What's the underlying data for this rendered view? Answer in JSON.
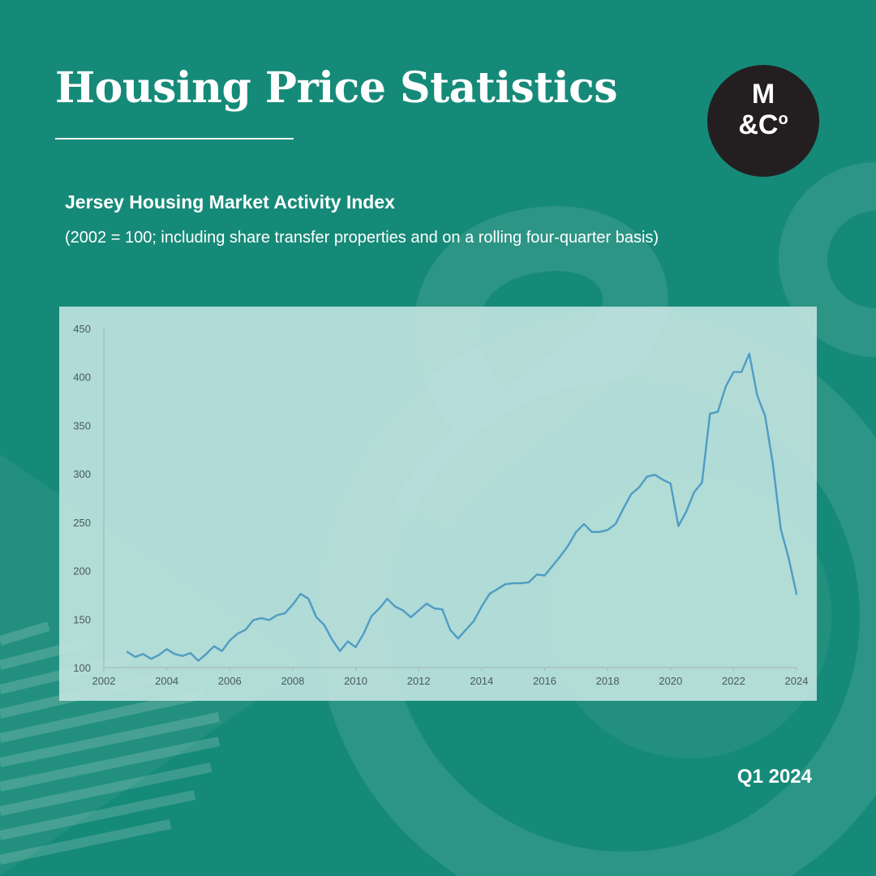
{
  "header": {
    "title": "Housing Price Statistics"
  },
  "logo": {
    "line1": "M",
    "line2": "&C",
    "line2_sup": "o"
  },
  "colors": {
    "background": "#168a78",
    "line": "#4f9cc4",
    "panel": "#c6e6e2",
    "logo_bg": "#231f20"
  },
  "chart_data": {
    "type": "line",
    "title": "Jersey Housing Market Activity Index",
    "subtitle": "(2002 = 100; including share transfer properties and on a rolling four-quarter basis)",
    "xlabel": "",
    "ylabel": "",
    "xlim": [
      2002,
      2024
    ],
    "ylim": [
      100,
      450
    ],
    "x_ticks": [
      "2002",
      "2004",
      "2006",
      "2008",
      "2010",
      "2012",
      "2014",
      "2016",
      "2018",
      "2020",
      "2022",
      "2024"
    ],
    "y_ticks": [
      "100",
      "150",
      "200",
      "250",
      "300",
      "350",
      "400",
      "450"
    ],
    "grid": false,
    "series": [
      {
        "name": "Housing Market Activity Index",
        "x": [
          2002.75,
          2003.0,
          2003.25,
          2003.5,
          2003.75,
          2004.0,
          2004.25,
          2004.5,
          2004.75,
          2005.0,
          2005.25,
          2005.5,
          2005.75,
          2006.0,
          2006.25,
          2006.5,
          2006.75,
          2007.0,
          2007.25,
          2007.5,
          2007.75,
          2008.0,
          2008.25,
          2008.5,
          2008.75,
          2009.0,
          2009.25,
          2009.5,
          2009.75,
          2010.0,
          2010.25,
          2010.5,
          2010.75,
          2011.0,
          2011.25,
          2011.5,
          2011.75,
          2012.0,
          2012.25,
          2012.5,
          2012.75,
          2013.0,
          2013.25,
          2013.5,
          2013.75,
          2014.0,
          2014.25,
          2014.5,
          2014.75,
          2015.0,
          2015.25,
          2015.5,
          2015.75,
          2016.0,
          2016.25,
          2016.5,
          2016.75,
          2017.0,
          2017.25,
          2017.5,
          2017.75,
          2018.0,
          2018.25,
          2018.5,
          2018.75,
          2019.0,
          2019.25,
          2019.5,
          2019.75,
          2020.0,
          2020.25,
          2020.5,
          2020.75,
          2021.0,
          2021.25,
          2021.5,
          2021.75,
          2022.0,
          2022.25,
          2022.5,
          2022.75,
          2023.0,
          2023.25,
          2023.5,
          2023.75,
          2024.0
        ],
        "values": [
          116,
          111,
          114,
          109,
          113,
          119,
          114,
          112,
          115,
          107,
          114,
          122,
          117,
          128,
          135,
          139,
          149,
          151,
          149,
          154,
          156,
          165,
          176,
          171,
          152,
          144,
          129,
          117,
          127,
          121,
          135,
          153,
          161,
          171,
          163,
          159,
          152,
          159,
          166,
          161,
          160,
          139,
          130,
          139,
          148,
          163,
          176,
          181,
          186,
          187,
          187,
          188,
          196,
          195,
          205,
          215,
          226,
          240,
          248,
          240,
          240,
          242,
          248,
          264,
          279,
          286,
          297,
          299,
          294,
          290,
          246,
          261,
          281,
          291,
          362,
          364,
          390,
          405,
          405,
          424,
          381,
          360,
          310,
          243,
          213,
          176
        ]
      }
    ]
  },
  "footer": {
    "period": "Q1 2024"
  }
}
